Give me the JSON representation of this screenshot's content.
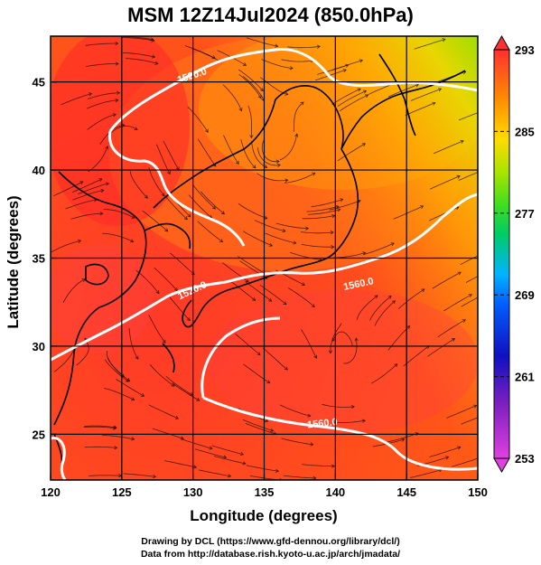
{
  "title": "MSM 12Z14Jul2024 (850.0hPa)",
  "axes": {
    "xlabel": "Longitude (degrees)",
    "ylabel": "Latitude  (degrees)",
    "xticks": [
      "120",
      "125",
      "130",
      "135",
      "140",
      "145",
      "150"
    ],
    "yticks": [
      "25",
      "30",
      "35",
      "40",
      "45"
    ],
    "xlim": [
      120,
      150
    ],
    "ylim": [
      22.4,
      47.6
    ]
  },
  "colorbar": {
    "labels": [
      "293",
      "285",
      "277",
      "269",
      "261",
      "253"
    ],
    "min": 253,
    "max": 293,
    "colors": [
      "#e040e0",
      "#1010c0",
      "#00b4ff",
      "#00cc66",
      "#88e000",
      "#ffdc00",
      "#ff8c00",
      "#ff3030"
    ]
  },
  "contours": [
    {
      "label": "1520.0"
    },
    {
      "label": "1560.0"
    },
    {
      "label": "1520.0"
    },
    {
      "label": "1560.0"
    }
  ],
  "credits": {
    "line1": "Drawing by DCL (https://www.gfd-dennou.org/library/dcl/)",
    "line2": "Data from http://database.rish.kyoto-u.ac.jp/arch/jmadata/"
  }
}
